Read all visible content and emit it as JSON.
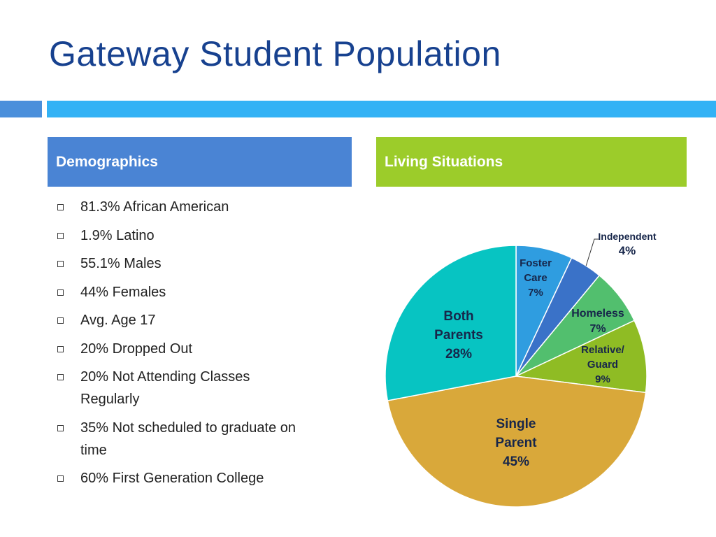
{
  "slide": {
    "title": "Gateway Student Population",
    "demographics_header": "Demographics",
    "living_header": "Living Situations",
    "bullets": [
      [
        "81.3% African American"
      ],
      [
        "1.9% Latino"
      ],
      [
        "55.1% Males"
      ],
      [
        "44% Females"
      ],
      [
        "Avg. Age 17"
      ],
      [
        "20% Dropped Out"
      ],
      [
        "20% Not Attending Classes",
        "Regularly"
      ],
      [
        "35% Not scheduled to graduate on",
        "time"
      ],
      [
        "60% First Generation College"
      ]
    ]
  },
  "colors": {
    "title": "#17418f",
    "demographics_header_bg": "#4a84d4",
    "living_header_bg": "#9ccc2a",
    "accent_bar_small": "#4a8fdb",
    "accent_bar_long": "#33b2f5"
  },
  "chart_data": {
    "type": "pie",
    "title": "",
    "slices": [
      {
        "name": "Foster Care",
        "label_lines": [
          "Foster",
          "Care",
          "7%"
        ],
        "value": 7,
        "color": "#2f9de0"
      },
      {
        "name": "Independent",
        "label_lines": [
          "Independent",
          "4%"
        ],
        "value": 4,
        "color": "#3a72c8"
      },
      {
        "name": "Homeless",
        "label_lines": [
          "Homeless",
          "7%"
        ],
        "value": 7,
        "color": "#52bf6e"
      },
      {
        "name": "Relative/Guard",
        "label_lines": [
          "Relative/",
          "Guard",
          "9%"
        ],
        "value": 9,
        "color": "#8fbc24"
      },
      {
        "name": "Single Parent",
        "label_lines": [
          "Single",
          "Parent",
          "45%"
        ],
        "value": 45,
        "color": "#d9a83a"
      },
      {
        "name": "Both Parents",
        "label_lines": [
          "Both",
          "Parents",
          "28%"
        ],
        "value": 28,
        "color": "#07c4c2"
      }
    ]
  }
}
